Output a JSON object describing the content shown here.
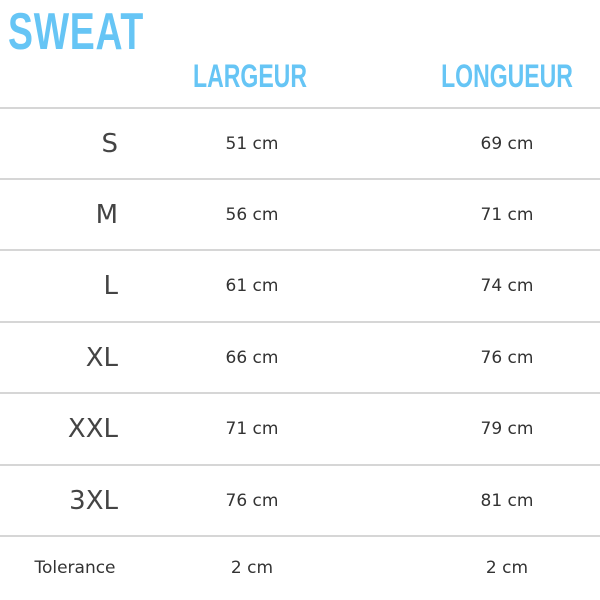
{
  "title": "SWEAT",
  "headers": {
    "width": "LARGEUR",
    "length": "LONGUEUR"
  },
  "accent_color": "#66c5f5",
  "rows": [
    {
      "size": "S",
      "width": "51 cm",
      "length": "69 cm"
    },
    {
      "size": "M",
      "width": "56 cm",
      "length": "71 cm"
    },
    {
      "size": "L",
      "width": "61 cm",
      "length": "74 cm"
    },
    {
      "size": "XL",
      "width": "66 cm",
      "length": "76 cm"
    },
    {
      "size": "XXL",
      "width": "71 cm",
      "length": "79 cm"
    },
    {
      "size": "3XL",
      "width": "76 cm",
      "length": "81 cm"
    }
  ],
  "tolerance": {
    "label": "Tolerance",
    "width": "2 cm",
    "length": "2 cm"
  }
}
